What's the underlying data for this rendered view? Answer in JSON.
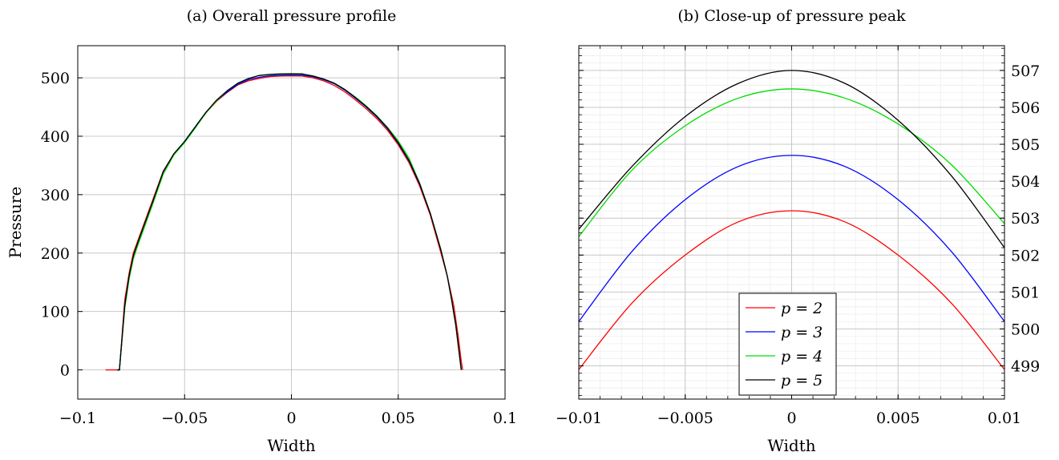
{
  "chart_data": [
    {
      "type": "line",
      "title": "(a) Overall pressure profile",
      "xlabel": "Width",
      "ylabel": "Pressure",
      "xlim": [
        -0.1,
        0.1
      ],
      "ylim": [
        -50,
        555
      ],
      "xticks": [
        -0.1,
        -0.05,
        0,
        0.05,
        0.1
      ],
      "xtick_labels": [
        "−0.1",
        "−0.05",
        "0",
        "0.05",
        "0.1"
      ],
      "yticks": [
        0,
        100,
        200,
        300,
        400,
        500
      ],
      "ytick_labels": [
        "0",
        "100",
        "200",
        "300",
        "400",
        "500"
      ],
      "grid": true,
      "series": [
        {
          "name": "p = 2",
          "color": "#ff0000",
          "x": [
            -0.087,
            -0.0815,
            -0.0805,
            -0.078,
            -0.076,
            -0.074,
            -0.072,
            -0.07,
            -0.065,
            -0.06,
            -0.055,
            -0.05,
            -0.045,
            -0.04,
            -0.035,
            -0.03,
            -0.025,
            -0.02,
            -0.015,
            -0.01,
            -0.005,
            0,
            0.005,
            0.01,
            0.015,
            0.02,
            0.025,
            0.03,
            0.035,
            0.04,
            0.045,
            0.05,
            0.055,
            0.06,
            0.065,
            0.07,
            0.073,
            0.076,
            0.078,
            0.0795,
            0.0802
          ],
          "y": [
            0,
            0,
            0,
            120,
            165,
            200,
            220,
            240,
            290,
            340,
            370,
            390,
            415,
            440,
            460,
            475,
            488,
            495,
            499,
            502,
            503,
            503.2,
            503,
            500,
            495,
            487,
            476,
            462,
            447,
            430,
            410,
            385,
            355,
            315,
            265,
            200,
            160,
            110,
            60,
            15,
            0
          ]
        },
        {
          "name": "p = 3",
          "color": "#0000ff",
          "x": [
            -0.0815,
            -0.0805,
            -0.078,
            -0.076,
            -0.074,
            -0.072,
            -0.07,
            -0.065,
            -0.06,
            -0.055,
            -0.05,
            -0.045,
            -0.04,
            -0.035,
            -0.03,
            -0.025,
            -0.02,
            -0.015,
            -0.01,
            -0.005,
            0,
            0.005,
            0.01,
            0.015,
            0.02,
            0.025,
            0.03,
            0.035,
            0.04,
            0.045,
            0.05,
            0.055,
            0.06,
            0.065,
            0.07,
            0.073,
            0.075,
            0.077,
            0.0785,
            0.0795
          ],
          "y": [
            0,
            0,
            110,
            160,
            195,
            217,
            237,
            287,
            339,
            370,
            391,
            416,
            441,
            461,
            476,
            489,
            497,
            501,
            503.5,
            504.5,
            504.7,
            504.5,
            502,
            497,
            490,
            479,
            465,
            450,
            433,
            413,
            388,
            358,
            318,
            268,
            205,
            160,
            120,
            75,
            30,
            0
          ]
        },
        {
          "name": "p = 4",
          "color": "#00dd00",
          "x": [
            -0.0815,
            -0.0805,
            -0.078,
            -0.076,
            -0.074,
            -0.072,
            -0.07,
            -0.065,
            -0.06,
            -0.055,
            -0.05,
            -0.045,
            -0.04,
            -0.035,
            -0.03,
            -0.025,
            -0.02,
            -0.015,
            -0.01,
            -0.005,
            0,
            0.005,
            0.01,
            0.015,
            0.02,
            0.025,
            0.03,
            0.035,
            0.04,
            0.045,
            0.05,
            0.055,
            0.06,
            0.065,
            0.07,
            0.073,
            0.075,
            0.077,
            0.0785,
            0.0795
          ],
          "y": [
            0,
            0,
            105,
            155,
            190,
            212,
            232,
            283,
            335,
            368,
            389,
            414,
            440,
            461,
            478,
            491,
            499,
            504,
            505.5,
            506.3,
            506.5,
            506.2,
            503.5,
            498,
            491,
            480,
            467,
            452,
            435,
            415,
            392,
            363,
            320,
            268,
            205,
            160,
            120,
            75,
            30,
            0
          ]
        },
        {
          "name": "p = 5",
          "color": "#000000",
          "x": [
            -0.0815,
            -0.0805,
            -0.078,
            -0.076,
            -0.074,
            -0.072,
            -0.07,
            -0.065,
            -0.06,
            -0.055,
            -0.05,
            -0.045,
            -0.04,
            -0.035,
            -0.03,
            -0.025,
            -0.02,
            -0.015,
            -0.01,
            -0.005,
            0,
            0.005,
            0.01,
            0.015,
            0.02,
            0.025,
            0.03,
            0.035,
            0.04,
            0.045,
            0.05,
            0.055,
            0.06,
            0.065,
            0.07,
            0.073,
            0.075,
            0.077,
            0.0785,
            0.0795
          ],
          "y": [
            0,
            0,
            110,
            160,
            195,
            217,
            237,
            287,
            339,
            370,
            391,
            416,
            441,
            462,
            478,
            491,
            499,
            504,
            506,
            506.8,
            507,
            506.7,
            503,
            498,
            491,
            480,
            466,
            451,
            434,
            414,
            389,
            359,
            319,
            268,
            205,
            160,
            120,
            75,
            30,
            0
          ]
        }
      ]
    },
    {
      "type": "line",
      "title": "(b) Close-up of pressure peak",
      "xlabel": "Width",
      "ylabel": "",
      "xlim": [
        -0.01,
        0.01
      ],
      "ylim": [
        498.1,
        507.67
      ],
      "xticks": [
        -0.01,
        -0.005,
        0,
        0.005,
        0.01
      ],
      "xtick_labels": [
        "−0.01",
        "−0.005",
        "0",
        "0.005",
        "0.01"
      ],
      "yticks": [
        499,
        500,
        501,
        502,
        503,
        504,
        505,
        506,
        507
      ],
      "ytick_labels": [
        "499",
        "500",
        "501",
        "502",
        "503",
        "504",
        "505",
        "506",
        "507"
      ],
      "grid": true,
      "legend_position": "lower-center",
      "series": [
        {
          "name": "p = 2",
          "color": "#ff0000",
          "x": [
            -0.01,
            -0.0075,
            -0.005,
            -0.0025,
            0,
            0.0025,
            0.005,
            0.0075,
            0.01
          ],
          "y": [
            498.9,
            500.7,
            502.0,
            502.9,
            503.2,
            502.9,
            502.0,
            500.7,
            498.9
          ]
        },
        {
          "name": "p = 3",
          "color": "#0000ff",
          "x": [
            -0.01,
            -0.0075,
            -0.005,
            -0.0025,
            0,
            0.0025,
            0.005,
            0.0075,
            0.01
          ],
          "y": [
            500.2,
            502.1,
            503.5,
            504.4,
            504.7,
            504.4,
            503.5,
            502.1,
            500.2
          ]
        },
        {
          "name": "p = 4",
          "color": "#00dd00",
          "x": [
            -0.01,
            -0.0075,
            -0.005,
            -0.0025,
            0,
            0.0025,
            0.005,
            0.0075,
            0.01
          ],
          "y": [
            502.5,
            504.3,
            505.5,
            506.25,
            506.5,
            506.25,
            505.55,
            504.45,
            502.85
          ]
        },
        {
          "name": "p = 5",
          "color": "#000000",
          "x": [
            -0.01,
            -0.0075,
            -0.005,
            -0.0025,
            0,
            0.0025,
            0.005,
            0.0075,
            0.01
          ],
          "y": [
            502.7,
            504.4,
            505.75,
            506.65,
            507.0,
            506.65,
            505.65,
            504.15,
            502.2
          ]
        }
      ]
    }
  ]
}
